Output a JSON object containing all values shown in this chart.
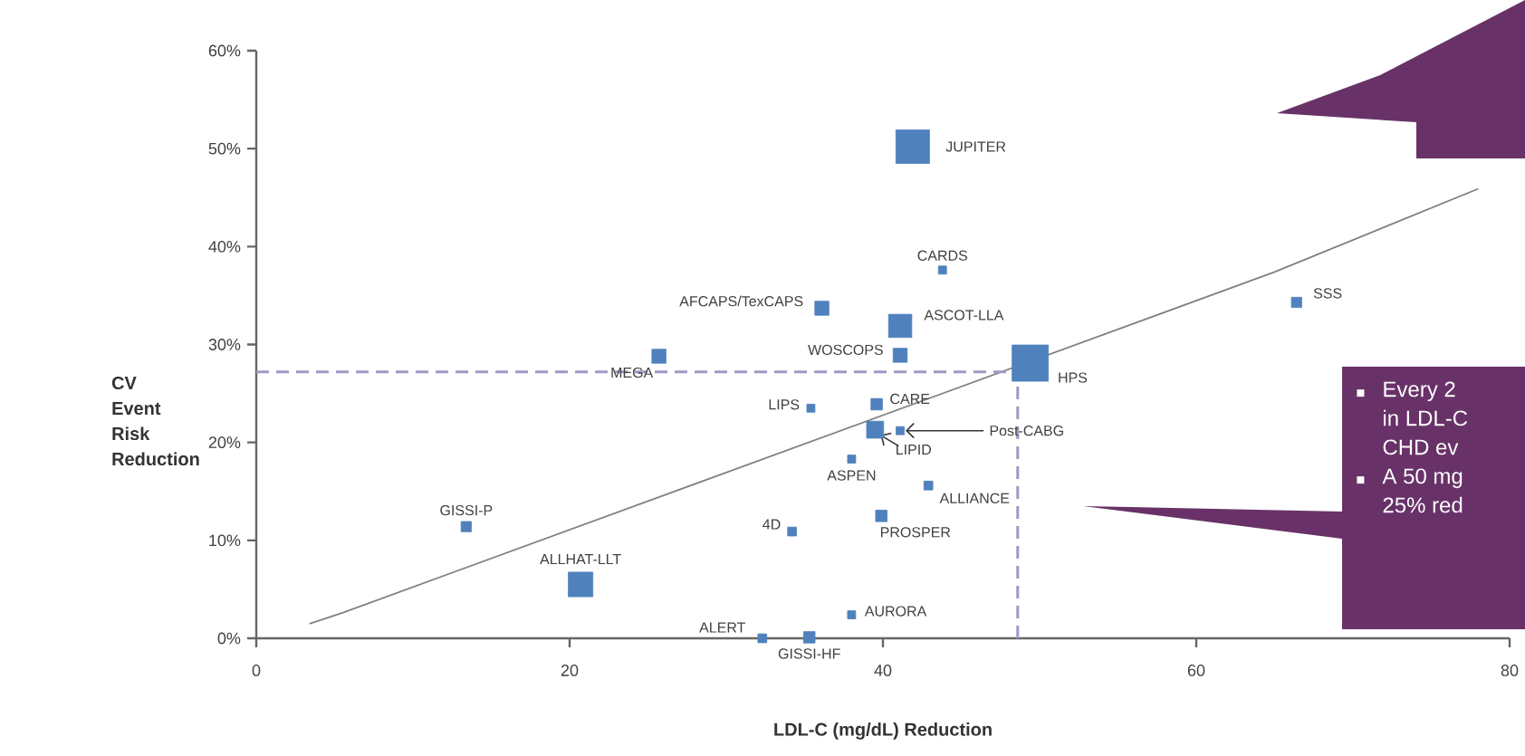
{
  "chart_data": {
    "type": "bubble",
    "xlabel": "LDL-C (mg/dL) Reduction",
    "ylabel": "CV Event Risk Reduction",
    "xlim": [
      0,
      80
    ],
    "xticks": [
      0,
      20,
      40,
      60,
      80
    ],
    "ylim": [
      0,
      60
    ],
    "yticks": [
      {
        "value": 0,
        "label": "0%"
      },
      {
        "value": 10,
        "label": "10%"
      },
      {
        "value": 20,
        "label": "20%"
      },
      {
        "value": 30,
        "label": "30%"
      },
      {
        "value": 40,
        "label": "40%"
      },
      {
        "value": 50,
        "label": "50%"
      },
      {
        "value": 60,
        "label": "60%"
      }
    ],
    "grid": false,
    "series": [
      {
        "marker": "square",
        "color": "#4f81bd",
        "x": [
          41.9,
          43.8,
          36.1,
          41.1,
          41.1,
          25.7,
          49.4,
          66.4,
          35.4,
          39.6,
          41.1,
          39.5,
          38.0,
          42.9,
          13.4,
          34.2,
          39.9,
          20.7,
          38.0,
          32.3,
          35.3
        ],
        "values": [
          50.2,
          37.6,
          33.7,
          31.9,
          28.9,
          28.8,
          28.1,
          34.3,
          23.5,
          23.9,
          21.2,
          21.3,
          18.3,
          15.6,
          11.4,
          10.9,
          12.5,
          5.5,
          2.4,
          0,
          0.1
        ],
        "sizes": [
          0.86,
          0.05,
          0.15,
          0.41,
          0.15,
          0.15,
          1,
          0.08,
          0.05,
          0.1,
          0.05,
          0.22,
          0.05,
          0.06,
          0.08,
          0.06,
          0.1,
          0.46,
          0.05,
          0.06,
          0.1
        ]
      },
      {
        "type": "line",
        "color": "#808080",
        "x": [
          3.4,
          5.5,
          65,
          78
        ],
        "values": [
          1.5,
          2.6,
          37.4,
          45.9
        ]
      }
    ],
    "ref_lines": [
      {
        "axis": "y",
        "value": 27.2,
        "color": "#9b9bc4",
        "line_style": "dashed"
      },
      {
        "axis": "x",
        "value": 48.6,
        "color": "#9b9bc4",
        "line_style": "dashed"
      }
    ],
    "annotations": [
      {
        "text": "JUPITER",
        "x": 41.9,
        "y": 50.2
      },
      {
        "text": "CARDS",
        "x": 43.8,
        "y": 37.6
      },
      {
        "text": "AFCAPS/TexCAPS",
        "x": 36.1,
        "y": 33.7
      },
      {
        "text": "ASCOT-LLA",
        "x": 41.1,
        "y": 31.9
      },
      {
        "text": "WOSCOPS",
        "x": 41.1,
        "y": 28.9
      },
      {
        "text": "MEGA",
        "x": 25.7,
        "y": 28.8
      },
      {
        "text": "HPS",
        "x": 49.4,
        "y": 28.1
      },
      {
        "text": "SSS",
        "x": 66.4,
        "y": 34.3
      },
      {
        "text": "LIPS",
        "x": 35.4,
        "y": 23.5
      },
      {
        "text": "CARE",
        "x": 39.6,
        "y": 23.9
      },
      {
        "text": "Post-CABG",
        "x": 41.1,
        "y": 21.2
      },
      {
        "text": "LIPID",
        "x": 39.5,
        "y": 21.3
      },
      {
        "text": "ASPEN",
        "x": 38.0,
        "y": 18.3
      },
      {
        "text": "ALLIANCE",
        "x": 42.9,
        "y": 15.6
      },
      {
        "text": "GISSI-P",
        "x": 13.4,
        "y": 11.4
      },
      {
        "text": "4D",
        "x": 34.2,
        "y": 10.9
      },
      {
        "text": "PROSPER",
        "x": 39.9,
        "y": 12.5
      },
      {
        "text": "ALLHAT-LLT",
        "x": 20.7,
        "y": 5.5
      },
      {
        "text": "AURORA",
        "x": 38.0,
        "y": 2.4
      },
      {
        "text": "ALERT",
        "x": 32.3,
        "y": 0
      },
      {
        "text": "GISSI-HF",
        "x": 35.3,
        "y": 0.1
      },
      "Every 2",
      "in LDL-C",
      "CHD ev",
      "A 50 mg",
      "25% red"
    ]
  }
}
